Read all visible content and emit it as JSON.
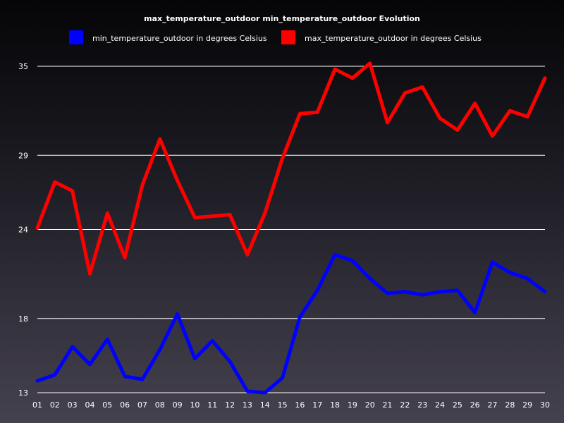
{
  "chart_data": {
    "type": "line",
    "title": "max_temperature_outdoor min_temperature_outdoor  Evolution",
    "xlabel": "",
    "ylabel": "",
    "categories": [
      "01",
      "02",
      "03",
      "04",
      "05",
      "06",
      "07",
      "08",
      "09",
      "10",
      "11",
      "12",
      "13",
      "14",
      "15",
      "16",
      "17",
      "18",
      "19",
      "20",
      "21",
      "22",
      "23",
      "24",
      "25",
      "26",
      "27",
      "28",
      "29",
      "30"
    ],
    "yticks": [
      13,
      18,
      24,
      29,
      35
    ],
    "ylim": [
      13,
      35
    ],
    "grid": true,
    "legend_position": "top",
    "series": [
      {
        "name": "min_temperature_outdoor in degrees Celsius",
        "color": "#0000ff",
        "values": [
          13.8,
          14.2,
          16.1,
          14.9,
          16.6,
          14.1,
          13.9,
          15.9,
          18.3,
          15.3,
          16.5,
          15.1,
          13.1,
          13.0,
          14.0,
          18.1,
          19.9,
          22.3,
          21.9,
          20.7,
          19.7,
          19.8,
          19.6,
          19.8,
          19.9,
          18.4,
          21.8,
          21.1,
          20.7,
          19.8
        ]
      },
      {
        "name": "max_temperature_outdoor in degrees Celsius",
        "color": "#ff0000",
        "values": [
          24.1,
          27.2,
          26.6,
          21.0,
          25.1,
          22.1,
          27.0,
          30.1,
          27.3,
          24.8,
          24.9,
          25.0,
          22.3,
          25.1,
          28.8,
          31.8,
          31.9,
          34.8,
          34.2,
          35.2,
          31.2,
          33.2,
          33.6,
          31.5,
          30.7,
          32.5,
          30.3,
          32.0,
          31.6,
          34.2
        ]
      }
    ]
  }
}
